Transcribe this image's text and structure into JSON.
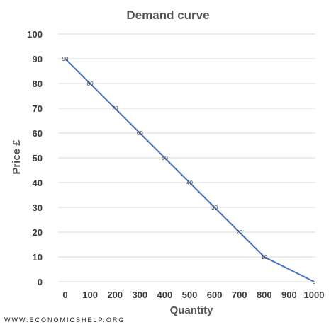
{
  "chart_data": {
    "type": "line",
    "title": "Demand curve",
    "xlabel": "Quantity",
    "ylabel": "Price £",
    "x": [
      0,
      100,
      200,
      300,
      400,
      500,
      600,
      700,
      800,
      900,
      1000
    ],
    "x_ticks": [
      "0",
      "100",
      "200",
      "300",
      "400",
      "500",
      "600",
      "700",
      "800",
      "900",
      "1000"
    ],
    "y_ticks": [
      "0",
      "10",
      "20",
      "30",
      "40",
      "50",
      "60",
      "70",
      "80",
      "90",
      "100"
    ],
    "xlim": [
      0,
      1000
    ],
    "ylim": [
      0,
      100
    ],
    "grid": true,
    "legend": "none",
    "series": [
      {
        "values": [
          90,
          80,
          70,
          60,
          50,
          40,
          30,
          20,
          10,
          0
        ],
        "x": [
          0,
          100,
          200,
          300,
          400,
          500,
          600,
          700,
          800,
          1000
        ],
        "labels": [
          "90",
          "80",
          "70",
          "60",
          "50",
          "40",
          "30",
          "20",
          "10",
          "0"
        ],
        "color": "#4472c4"
      }
    ]
  },
  "watermark": "WWW.ECONOMICSHELP.ORG",
  "colors": {
    "grid": "#d9d9d9",
    "line": "#4472c4"
  }
}
